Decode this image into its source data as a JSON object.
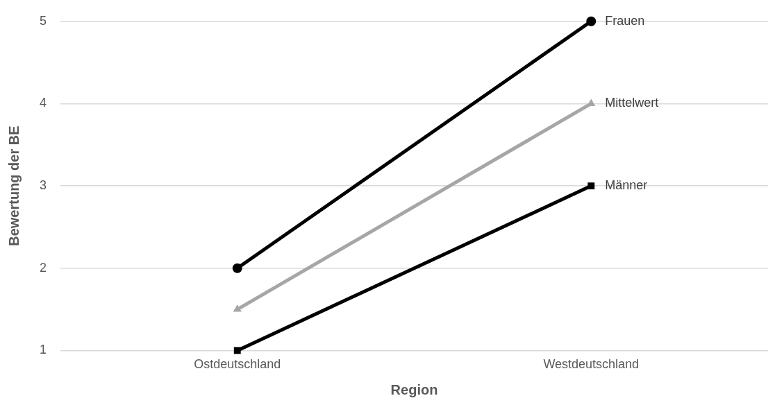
{
  "chart_data": {
    "type": "line",
    "xlabel": "Region",
    "ylabel": "Bewertung der BE",
    "categories": [
      "Ostdeutschland",
      "Westdeutschland"
    ],
    "series": [
      {
        "name": "Frauen",
        "color": "#000000",
        "marker": "circle",
        "values": [
          2,
          5
        ]
      },
      {
        "name": "Mittelwert",
        "color": "#a6a6a6",
        "marker": "triangle",
        "values": [
          1.5,
          4
        ]
      },
      {
        "name": "Männer",
        "color": "#000000",
        "marker": "square",
        "values": [
          1,
          3
        ]
      }
    ],
    "ylim": [
      1,
      5
    ],
    "yticks": [
      1,
      2,
      3,
      4,
      5
    ],
    "grid": "y",
    "legend": false,
    "line_style": "solid"
  }
}
